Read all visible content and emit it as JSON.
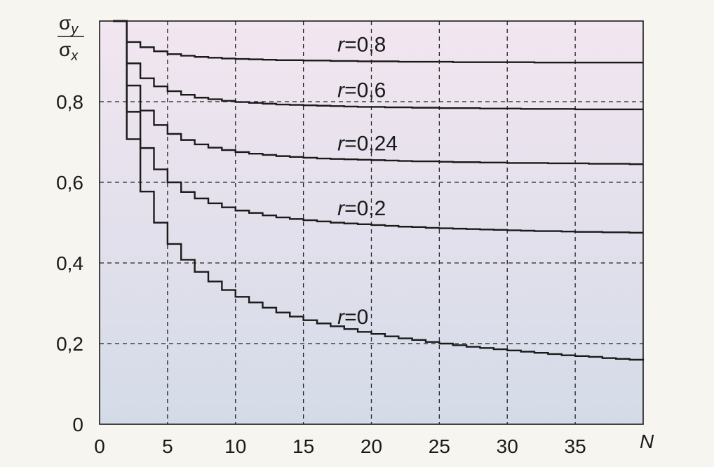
{
  "chart_data": {
    "type": "line",
    "step": true,
    "xlabel": "N",
    "ylabel_num": "σ",
    "ylabel_num_sub": "y",
    "ylabel_den": "σ",
    "ylabel_den_sub": "x",
    "xlim": [
      0,
      40
    ],
    "ylim": [
      0,
      1.0
    ],
    "grid": true,
    "background_gradient": [
      "#f2e6f0",
      "#d4dbe8"
    ],
    "xticks": [
      {
        "value": 0,
        "label": "0"
      },
      {
        "value": 5,
        "label": "5"
      },
      {
        "value": 10,
        "label": "10"
      },
      {
        "value": 15,
        "label": "15"
      },
      {
        "value": 20,
        "label": "20"
      },
      {
        "value": 25,
        "label": "25"
      },
      {
        "value": 30,
        "label": "30"
      },
      {
        "value": 35,
        "label": "35"
      }
    ],
    "yticks": [
      {
        "value": 0,
        "label": "0"
      },
      {
        "value": 0.2,
        "label": "0,2"
      },
      {
        "value": 0.4,
        "label": "0,4"
      },
      {
        "value": 0.6,
        "label": "0,6"
      },
      {
        "value": 0.8,
        "label": "0,8"
      }
    ],
    "x": [
      1,
      2,
      3,
      4,
      5,
      6,
      7,
      8,
      9,
      10,
      11,
      12,
      13,
      14,
      15,
      16,
      17,
      18,
      19,
      20,
      21,
      22,
      23,
      24,
      25,
      26,
      27,
      28,
      29,
      30,
      31,
      32,
      33,
      34,
      35,
      36,
      37,
      38,
      39,
      40
    ],
    "series": [
      {
        "label_r": "r",
        "label_value": "=0,8",
        "values": [
          1.0,
          0.948,
          0.935,
          0.925,
          0.918,
          0.914,
          0.911,
          0.909,
          0.907,
          0.906,
          0.905,
          0.904,
          0.903,
          0.903,
          0.902,
          0.902,
          0.901,
          0.901,
          0.9,
          0.9,
          0.9,
          0.899,
          0.899,
          0.899,
          0.899,
          0.898,
          0.898,
          0.898,
          0.898,
          0.898,
          0.898,
          0.897,
          0.897,
          0.897,
          0.897,
          0.897,
          0.897,
          0.897,
          0.897,
          0.897
        ]
      },
      {
        "label_r": "r",
        "label_value": "=0,6",
        "values": [
          1.0,
          0.895,
          0.858,
          0.838,
          0.826,
          0.817,
          0.81,
          0.806,
          0.802,
          0.799,
          0.797,
          0.795,
          0.793,
          0.792,
          0.791,
          0.79,
          0.789,
          0.788,
          0.787,
          0.787,
          0.786,
          0.786,
          0.785,
          0.785,
          0.784,
          0.784,
          0.784,
          0.783,
          0.783,
          0.783,
          0.782,
          0.782,
          0.782,
          0.782,
          0.781,
          0.781,
          0.781,
          0.781,
          0.781,
          0.781
        ]
      },
      {
        "label_r": "r",
        "label_value": "=0,24",
        "values": [
          1.0,
          0.84,
          0.778,
          0.742,
          0.72,
          0.705,
          0.694,
          0.686,
          0.68,
          0.675,
          0.671,
          0.668,
          0.665,
          0.663,
          0.661,
          0.659,
          0.658,
          0.657,
          0.656,
          0.655,
          0.654,
          0.653,
          0.652,
          0.652,
          0.651,
          0.65,
          0.65,
          0.649,
          0.649,
          0.648,
          0.648,
          0.648,
          0.647,
          0.647,
          0.647,
          0.646,
          0.646,
          0.646,
          0.645,
          0.645
        ]
      },
      {
        "label_r": "r",
        "label_value": "=0,2",
        "values": [
          1.0,
          0.775,
          0.685,
          0.632,
          0.6,
          0.576,
          0.56,
          0.548,
          0.538,
          0.53,
          0.524,
          0.518,
          0.513,
          0.509,
          0.506,
          0.503,
          0.5,
          0.498,
          0.496,
          0.494,
          0.492,
          0.49,
          0.489,
          0.487,
          0.486,
          0.485,
          0.484,
          0.483,
          0.482,
          0.481,
          0.48,
          0.479,
          0.479,
          0.478,
          0.477,
          0.477,
          0.476,
          0.476,
          0.475,
          0.475
        ]
      },
      {
        "label_r": "r",
        "label_value": "=0",
        "values": [
          1.0,
          0.707,
          0.577,
          0.5,
          0.447,
          0.408,
          0.378,
          0.354,
          0.333,
          0.316,
          0.302,
          0.289,
          0.277,
          0.267,
          0.258,
          0.25,
          0.243,
          0.236,
          0.229,
          0.224,
          0.218,
          0.213,
          0.209,
          0.204,
          0.2,
          0.196,
          0.192,
          0.189,
          0.186,
          0.183,
          0.18,
          0.177,
          0.174,
          0.171,
          0.169,
          0.167,
          0.164,
          0.162,
          0.16,
          0.158
        ]
      }
    ]
  }
}
